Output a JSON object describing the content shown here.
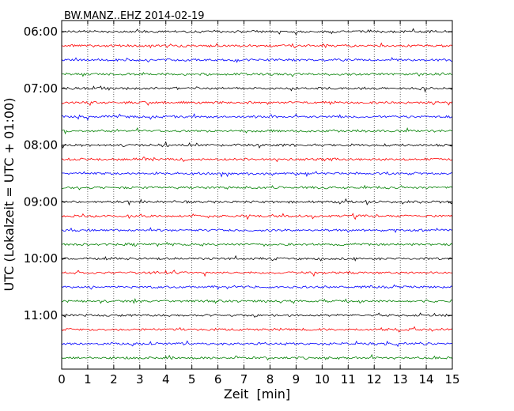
{
  "chart_data": {
    "type": "line",
    "title": "BW.MANZ..EHZ 2014-02-19",
    "xlabel": "Zeit  [min]",
    "ylabel": "UTC (Lokalzeit = UTC + 01:00)",
    "xlim": [
      0,
      15
    ],
    "x_ticks": [
      0,
      1,
      2,
      3,
      4,
      5,
      6,
      7,
      8,
      9,
      10,
      11,
      12,
      13,
      14,
      15
    ],
    "x_tick_labels": [
      "0",
      "1",
      "2",
      "3",
      "4",
      "5",
      "6",
      "7",
      "8",
      "9",
      "10",
      "11",
      "12",
      "13",
      "14",
      "15"
    ],
    "y_tick_labels": [
      "06:00",
      "07:00",
      "08:00",
      "09:00",
      "10:00",
      "11:00"
    ],
    "y_tick_start_minutes": [
      360,
      420,
      480,
      540,
      600,
      660
    ],
    "grid": "vertical dotted at each minute",
    "trace_minutes_per_line": 15,
    "trace_start_minutes": [
      360,
      375,
      390,
      405,
      420,
      435,
      450,
      465,
      480,
      495,
      510,
      525,
      540,
      555,
      570,
      585,
      600,
      615,
      630,
      645,
      660,
      675,
      690,
      705
    ],
    "trace_colors": [
      "#000000",
      "#ff0000",
      "#0000ff",
      "#008000"
    ],
    "traces": "noise-like seismogram traces, one per 15-minute line"
  }
}
